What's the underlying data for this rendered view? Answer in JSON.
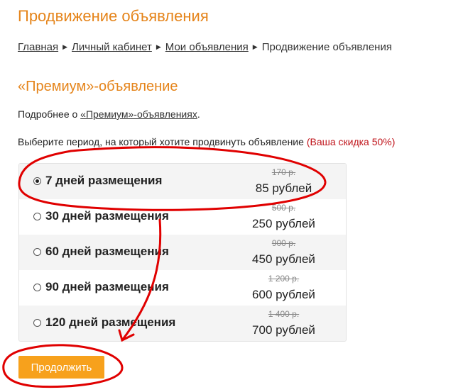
{
  "page_title": "Продвижение объявления",
  "breadcrumb": [
    {
      "label": "Главная"
    },
    {
      "label": "Личный кабинет"
    },
    {
      "label": "Мои объявления"
    },
    {
      "label": "Продвижение объявления"
    }
  ],
  "section_title": "«Премиум»-объявление",
  "more": {
    "prefix": "Подробнее о ",
    "link": "«Премиум»-объявлениях",
    "suffix": "."
  },
  "choose": {
    "text": "Выберите период, на который хотите продвинуть объявление ",
    "discount": "(Ваша скидка 50%)"
  },
  "options": [
    {
      "label": "7 дней размещения",
      "old_price": "170 р.",
      "price": "85 рублей",
      "selected": true
    },
    {
      "label": "30 дней размещения",
      "old_price": "500 р.",
      "price": "250 рублей",
      "selected": false
    },
    {
      "label": "60 дней размещения",
      "old_price": "900 р.",
      "price": "450 рублей",
      "selected": false
    },
    {
      "label": "90 дней размещения",
      "old_price": "1 200 р.",
      "price": "600 рублей",
      "selected": false
    },
    {
      "label": "120 дней размещения",
      "old_price": "1 400 р.",
      "price": "700 рублей",
      "selected": false
    }
  ],
  "continue_label": "Продолжить",
  "colors": {
    "accent": "#e5841a",
    "button": "#f7a11c",
    "discount": "#c0141b",
    "annotation": "#e00000"
  }
}
